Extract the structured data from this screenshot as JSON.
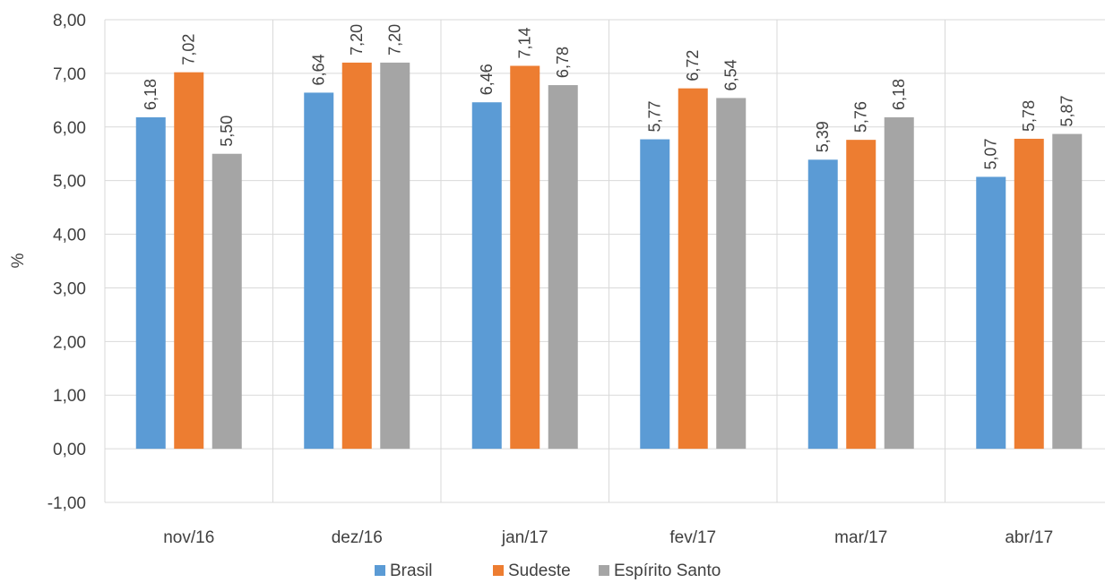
{
  "chart_data": {
    "type": "bar",
    "title": "",
    "xlabel": "",
    "ylabel": "%",
    "categories": [
      "nov/16",
      "dez/16",
      "jan/17",
      "fev/17",
      "mar/17",
      "abr/17"
    ],
    "series": [
      {
        "name": "Brasil",
        "color": "#5b9bd5",
        "values": [
          6.18,
          6.64,
          6.46,
          5.77,
          5.39,
          5.07
        ],
        "labels": [
          "6,18",
          "6,64",
          "6,46",
          "5,77",
          "5,39",
          "5,07"
        ]
      },
      {
        "name": "Sudeste",
        "color": "#ed7d31",
        "values": [
          7.02,
          7.2,
          7.14,
          6.72,
          5.76,
          5.78
        ],
        "labels": [
          "7,02",
          "7,20",
          "7,14",
          "6,72",
          "5,76",
          "5,78"
        ]
      },
      {
        "name": "Espírito Santo",
        "color": "#a5a5a5",
        "values": [
          5.5,
          7.2,
          6.78,
          6.54,
          6.18,
          5.87
        ],
        "labels": [
          "5,50",
          "7,20",
          "6,78",
          "6,54",
          "6,18",
          "5,87"
        ]
      }
    ],
    "ylim": [
      -1,
      8
    ],
    "yticks": [
      -1,
      0,
      1,
      2,
      3,
      4,
      5,
      6,
      7,
      8
    ],
    "ytick_labels": [
      "-1,00",
      "0,00",
      "1,00",
      "2,00",
      "3,00",
      "4,00",
      "5,00",
      "6,00",
      "7,00",
      "8,00"
    ],
    "grid": true,
    "legend_position": "bottom"
  }
}
